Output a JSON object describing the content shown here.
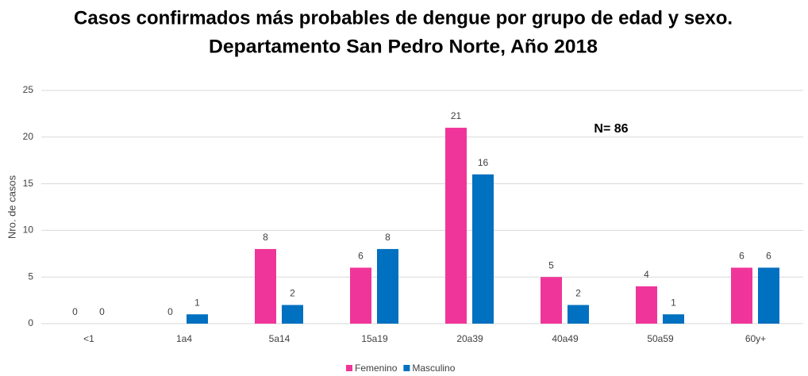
{
  "chart_data": {
    "type": "bar",
    "title": "Casos confirmados más probables de dengue por grupo de edad y sexo.",
    "subtitle": "Departamento San Pedro Norte, Año 2018",
    "y_label": "Nro. de casos",
    "annotation": "N= 86",
    "categories": [
      "<1",
      "1a4",
      "5a14",
      "15a19",
      "20a39",
      "40a49",
      "50a59",
      "60y+"
    ],
    "series": [
      {
        "name": "Femenino",
        "color": "#f0359a",
        "values": [
          0,
          0,
          8,
          6,
          21,
          5,
          4,
          6
        ]
      },
      {
        "name": "Masculino",
        "color": "#0070c0",
        "values": [
          0,
          1,
          2,
          8,
          16,
          2,
          1,
          6
        ]
      }
    ],
    "ylim": [
      0,
      25
    ],
    "yticks": [
      0,
      5,
      10,
      15,
      20,
      25
    ],
    "grid": true,
    "legend": "bottom"
  }
}
